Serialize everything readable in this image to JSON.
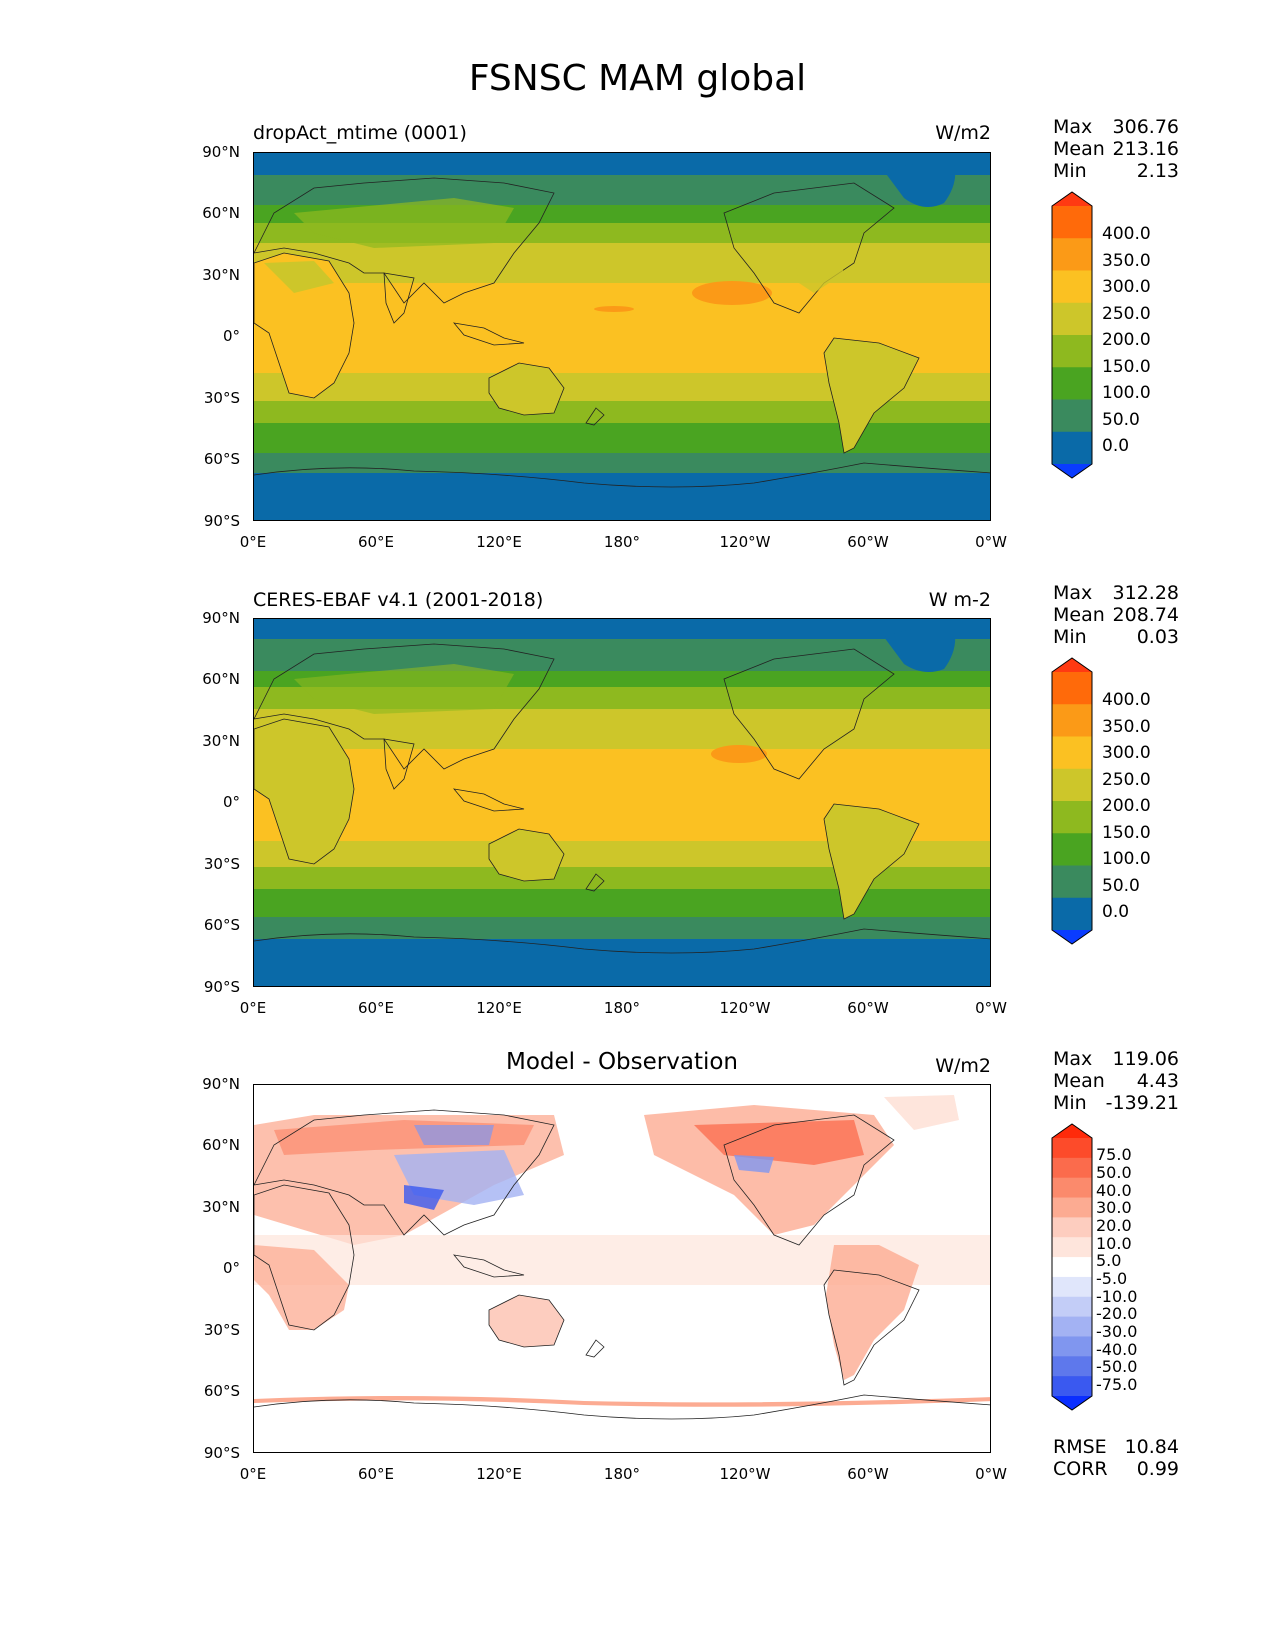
{
  "figure": {
    "title": "FSNSC MAM global"
  },
  "lat_ticks": [
    "90°N",
    "60°N",
    "30°N",
    "0°",
    "30°S",
    "60°S",
    "90°S"
  ],
  "lon_ticks": [
    "0°E",
    "60°E",
    "120°E",
    "180°",
    "120°W",
    "60°W",
    "0°W"
  ],
  "panels": [
    {
      "title": "dropAct_mtime (0001)",
      "center_title": "",
      "units": "W/m2",
      "stats": [
        {
          "label": "Max",
          "value": "306.76"
        },
        {
          "label": "Mean",
          "value": "213.16"
        },
        {
          "label": "Min",
          "value": "2.13"
        }
      ],
      "colorbar": {
        "labels": [
          "400.0",
          "350.0",
          "300.0",
          "250.0",
          "200.0",
          "150.0",
          "100.0",
          "50.0",
          "0.0"
        ],
        "colors": [
          "#ff3a12",
          "#ff6a0a",
          "#fb9a17",
          "#fbc122",
          "#cdc62a",
          "#8eb91f",
          "#4aa421",
          "#3a8a5e",
          "#0a6aa8",
          "#0a3cff"
        ]
      }
    },
    {
      "title": "CERES-EBAF v4.1 (2001-2018)",
      "center_title": "",
      "units": "W m-2",
      "stats": [
        {
          "label": "Max",
          "value": "312.28"
        },
        {
          "label": "Mean",
          "value": "208.74"
        },
        {
          "label": "Min",
          "value": "0.03"
        }
      ],
      "colorbar": {
        "labels": [
          "400.0",
          "350.0",
          "300.0",
          "250.0",
          "200.0",
          "150.0",
          "100.0",
          "50.0",
          "0.0"
        ],
        "colors": [
          "#ff3a12",
          "#ff6a0a",
          "#fb9a17",
          "#fbc122",
          "#cdc62a",
          "#8eb91f",
          "#4aa421",
          "#3a8a5e",
          "#0a6aa8",
          "#0a3cff"
        ]
      }
    },
    {
      "title": "",
      "center_title": "Model - Observation",
      "units": "W/m2",
      "stats": [
        {
          "label": "Max",
          "value": "119.06"
        },
        {
          "label": "Mean",
          "value": "4.43"
        },
        {
          "label": "Min",
          "value": "-139.21"
        }
      ],
      "extra_stats": [
        {
          "label": "RMSE",
          "value": "10.84"
        },
        {
          "label": "CORR",
          "value": "0.99"
        }
      ],
      "colorbar": {
        "labels": [
          "75.0",
          "50.0",
          "40.0",
          "30.0",
          "20.0",
          "10.0",
          "5.0",
          "-5.0",
          "-10.0",
          "-20.0",
          "-30.0",
          "-40.0",
          "-50.0",
          "-75.0"
        ],
        "colors": [
          "#ff2a0a",
          "#fd4b2a",
          "#fb6b4c",
          "#fb8a6c",
          "#fcab92",
          "#fdcdbf",
          "#fee5dc",
          "#ffffff",
          "#e0e6fb",
          "#c3cdf7",
          "#a3b2f3",
          "#8096ef",
          "#5e78ec",
          "#3a59f0",
          "#0a2eff"
        ]
      }
    }
  ]
}
